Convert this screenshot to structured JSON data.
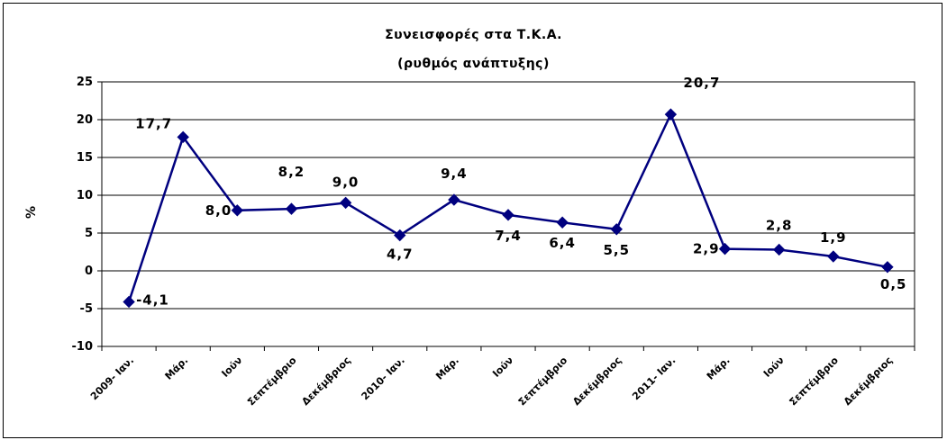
{
  "chart_data": {
    "type": "line",
    "title": "Συνεισφορές στα Τ.Κ.Α.",
    "subtitle": "(ρυθμός ανάπτυξης)",
    "ylabel": "%",
    "xlabel": "",
    "ylim": [
      -10,
      25
    ],
    "yticks": [
      -10,
      -5,
      0,
      5,
      10,
      15,
      20,
      25
    ],
    "grid": true,
    "legend": "none",
    "categories": [
      "2009- Ιαν.",
      "Μάρ.",
      "Ιούν",
      "Σεπτέμβριο",
      "Δεκέμβριος",
      "2010- Ιαν.",
      "Μάρ.",
      "Ιούν",
      "Σεπτέμβριο",
      "Δεκέμβριος",
      "2011- Ιαν.",
      "Μάρ.",
      "Ιούν",
      "Σεπτέμβριο",
      "Δεκέμβριος"
    ],
    "series": [
      {
        "values": [
          -4.1,
          17.7,
          8.0,
          8.2,
          9.0,
          4.7,
          9.4,
          7.4,
          6.4,
          5.5,
          20.7,
          2.9,
          2.8,
          1.9,
          0.5
        ],
        "labels": [
          "-4,1",
          "17,7",
          "8,0",
          "8,2",
          "9,0",
          "4,7",
          "9,4",
          "7,4",
          "6,4",
          "5,5",
          "20,7",
          "2,9",
          "2,8",
          "1,9",
          "0,5"
        ]
      }
    ],
    "colors": {
      "line": "#00007F",
      "marker": "#00007F",
      "grid": "#000000"
    }
  }
}
